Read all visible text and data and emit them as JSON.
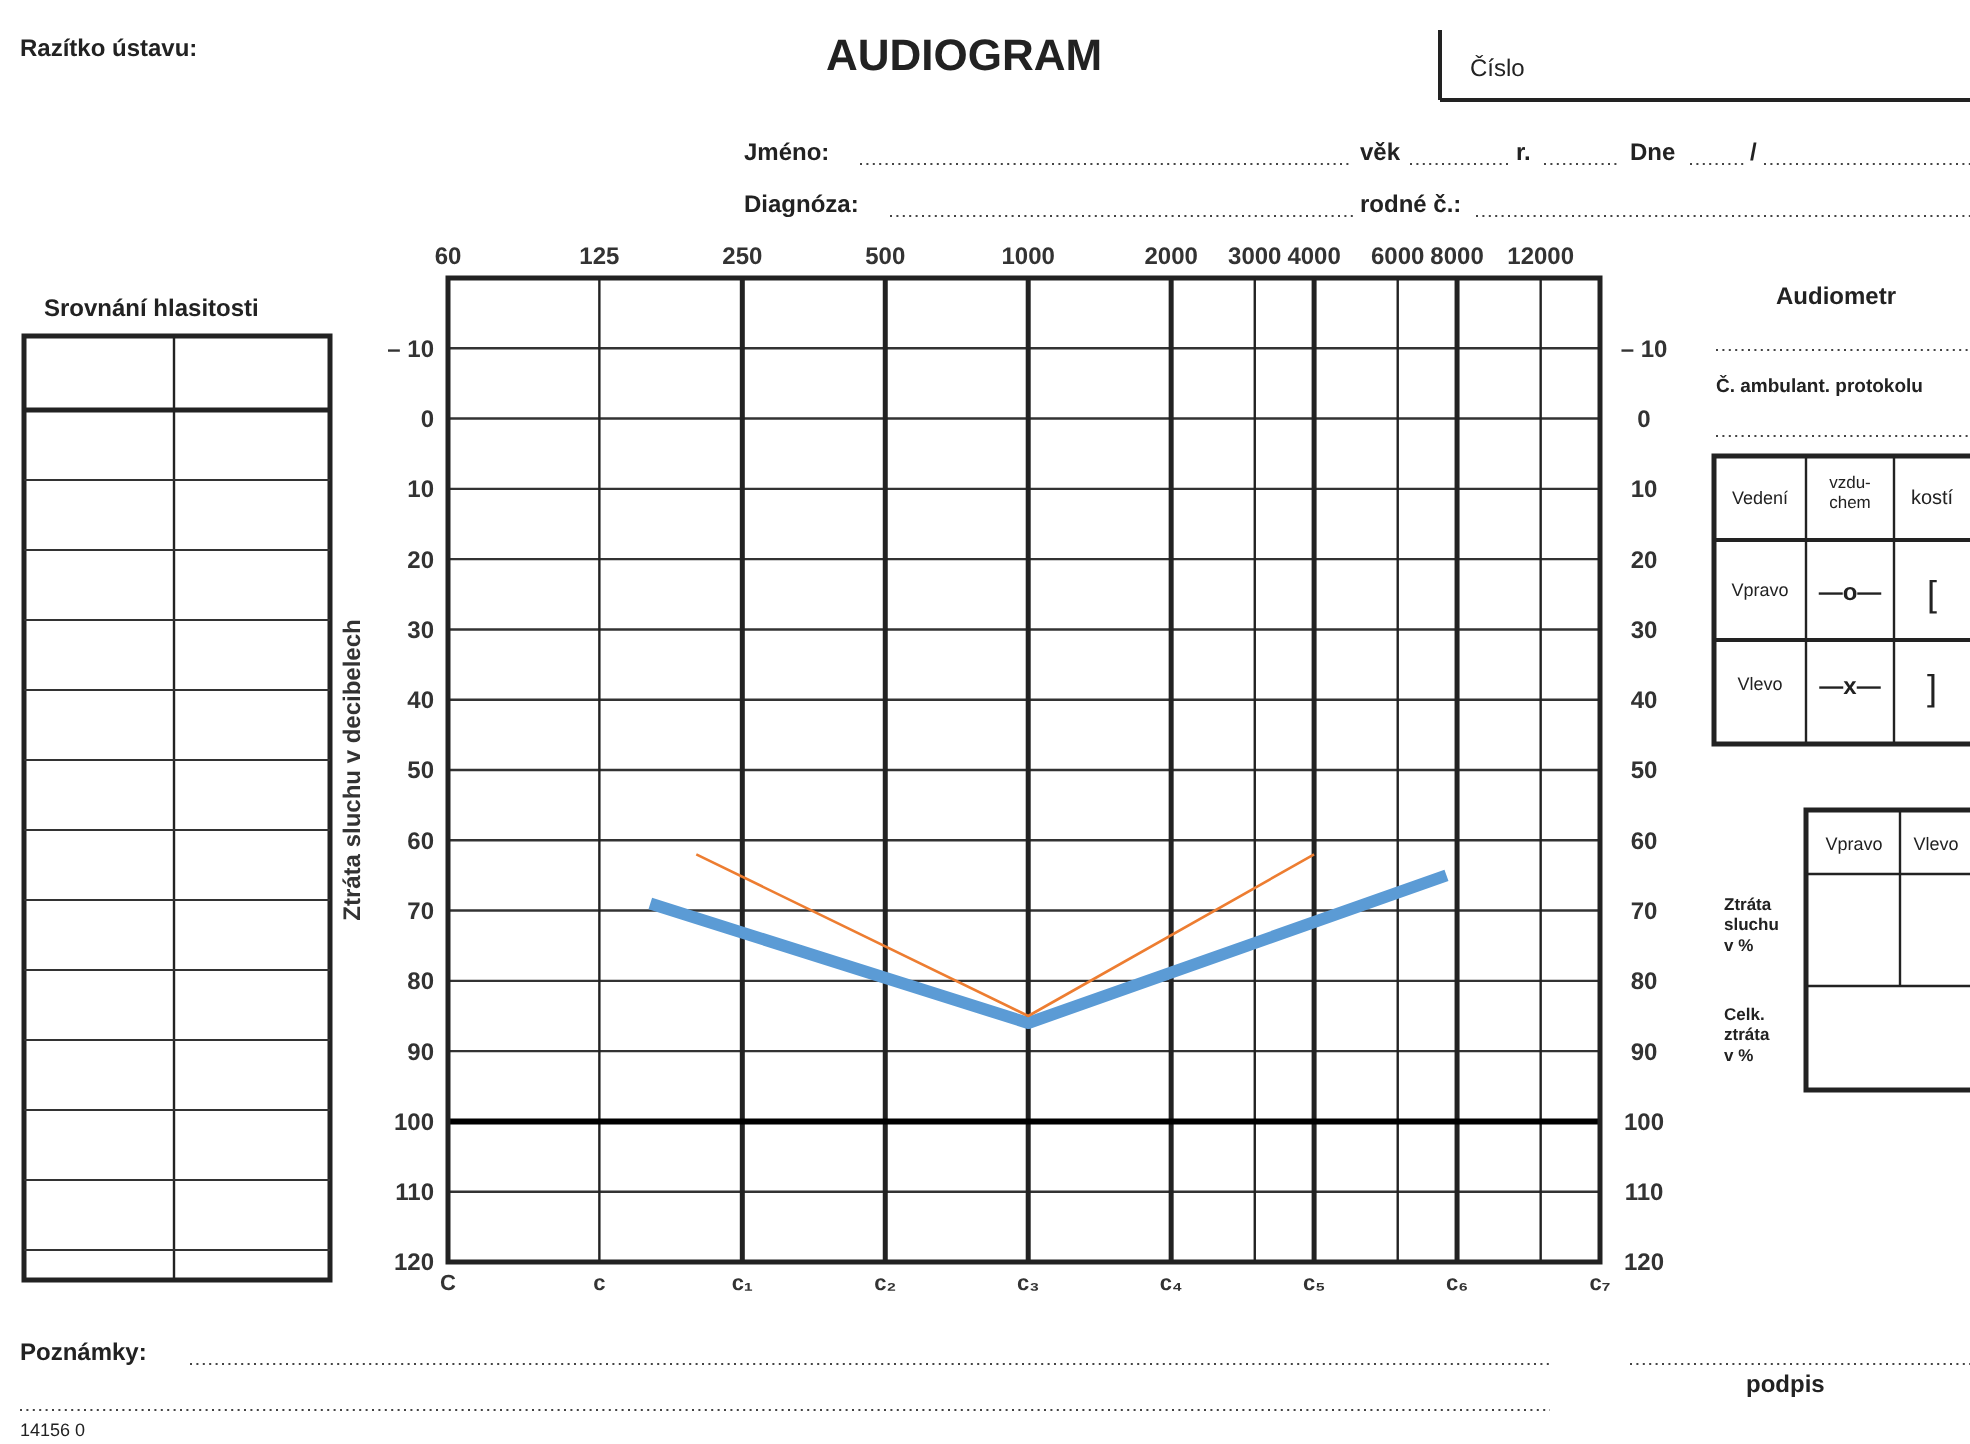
{
  "chart_data": {
    "type": "line",
    "title": "AUDIOGRAM",
    "ylabel": "Ztráta sluchu v decibelech",
    "series": [
      {
        "color": "#5b9bd5",
        "x": [
          160,
          1000,
          7600
        ],
        "values": [
          69,
          86,
          65
        ]
      },
      {
        "color": "#ed7d31",
        "x": [
          200,
          1000,
          4000
        ],
        "values": [
          62,
          85,
          62
        ]
      }
    ],
    "log": "x",
    "xlim": [
      60,
      16000
    ],
    "xticks": [
      60,
      125,
      250,
      500,
      1000,
      2000,
      3000,
      4000,
      6000,
      8000,
      12000
    ],
    "ylim": [
      120,
      -20
    ],
    "yticks": [
      {
        "value": -10,
        "label": "– 10"
      },
      0,
      10,
      20,
      30,
      40,
      50,
      60,
      70,
      80,
      90,
      100,
      110,
      120
    ],
    "y2lim": [
      120,
      -20
    ],
    "y2ticks": [
      {
        "value": -10,
        "label": "– 10"
      },
      0,
      10,
      20,
      30,
      40,
      50,
      60,
      70,
      80,
      90,
      100,
      110,
      120
    ],
    "grid": true,
    "ref_lines": [
      {
        "axis": "y",
        "value": 100,
        "color": "#000000"
      }
    ],
    "annotations": [
      "Razítko ústavu:",
      "Číslo",
      "Jméno:",
      "věk",
      "r.",
      "Dne",
      "/",
      "Diagnóza:",
      "rodné č.:",
      "Srovnání hlasitosti",
      "Audiometr",
      "Č. ambulant. protokolu",
      "Vedení",
      "vzdu- chem",
      "kostí",
      "Vpravo",
      "—o—",
      "[",
      "Vlevo",
      "—x—",
      "]",
      "Vpravo",
      "Vlevo",
      "Ztráta sluchu v %",
      "Celk. ztráta v %",
      "Poznámky:",
      "podpis",
      "14156 0",
      "C",
      "c",
      "c₁",
      "c₂",
      "c₃",
      "c₄",
      "c₅",
      "c₆",
      "c₇"
    ]
  }
}
